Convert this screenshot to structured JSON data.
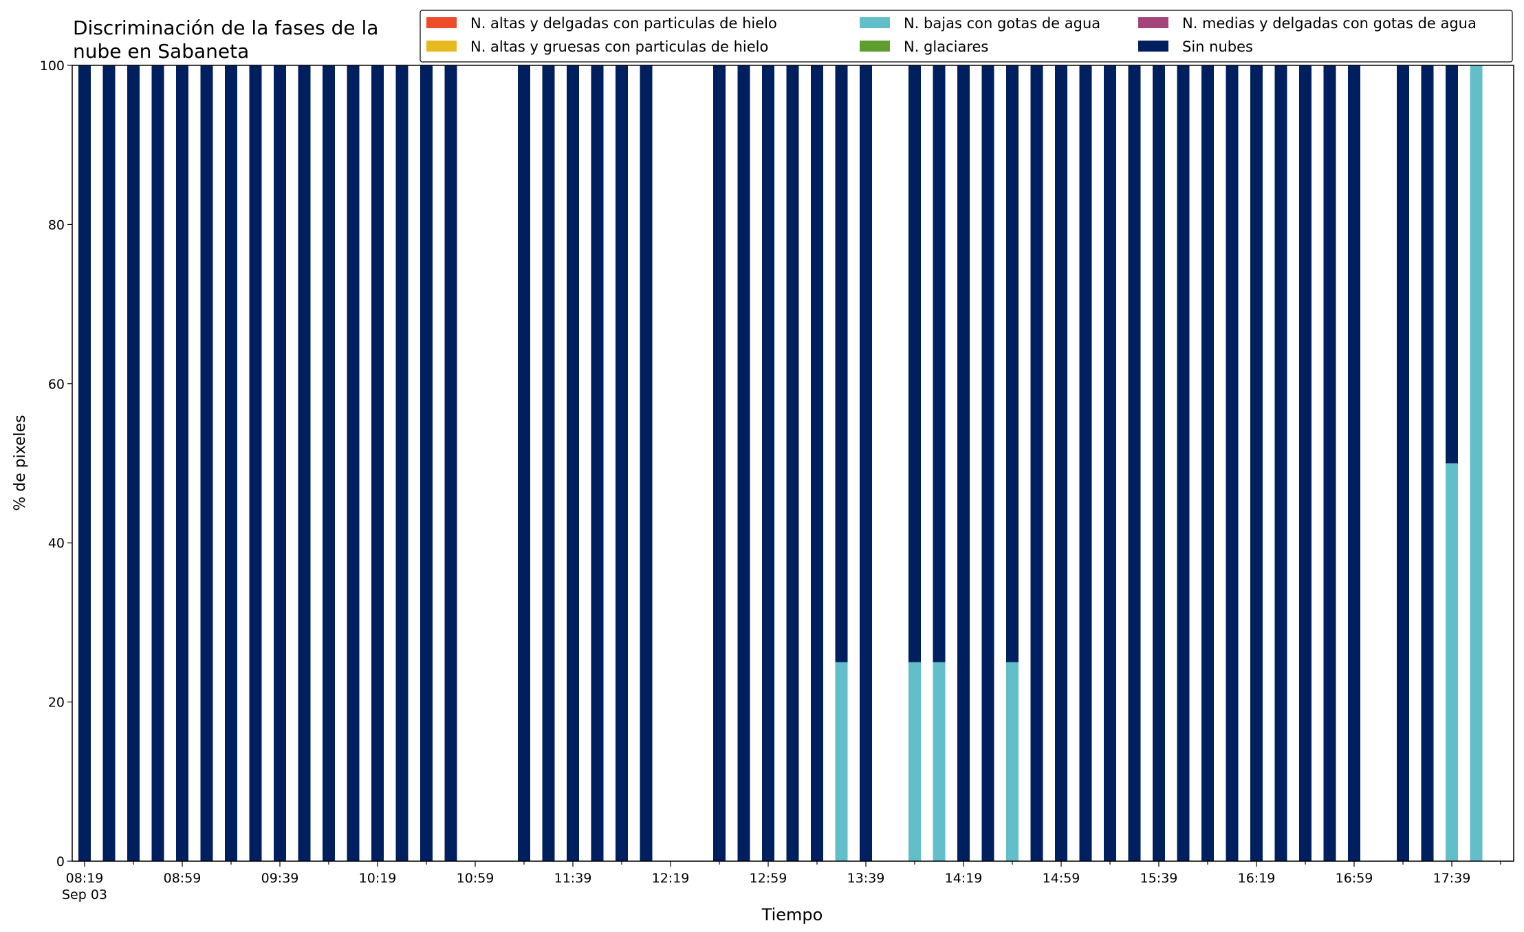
{
  "chart_data": {
    "type": "bar",
    "stacked": true,
    "title": "Discriminación de la fases de la\nnube en Sabaneta",
    "xlabel": "Tiempo",
    "ylabel": "% de pixeles",
    "ylim": [
      0,
      100
    ],
    "yticks": [
      0,
      20,
      40,
      60,
      80,
      100
    ],
    "x_start": "08:19",
    "x_step_minutes": 10,
    "x_count": 58,
    "x_major_ticks": [
      {
        "index": 0,
        "label": "08:19",
        "sublabel": "Sep 03"
      },
      {
        "index": 4,
        "label": "08:59"
      },
      {
        "index": 8,
        "label": "09:39"
      },
      {
        "index": 12,
        "label": "10:19"
      },
      {
        "index": 16,
        "label": "10:59"
      },
      {
        "index": 20,
        "label": "11:39"
      },
      {
        "index": 24,
        "label": "12:19"
      },
      {
        "index": 28,
        "label": "12:59"
      },
      {
        "index": 32,
        "label": "13:39"
      },
      {
        "index": 36,
        "label": "14:19"
      },
      {
        "index": 40,
        "label": "14:59"
      },
      {
        "index": 44,
        "label": "15:39"
      },
      {
        "index": 48,
        "label": "16:19"
      },
      {
        "index": 52,
        "label": "16:59"
      },
      {
        "index": 56,
        "label": "17:39"
      }
    ],
    "legend": {
      "placement": "top-right",
      "columns": 3
    },
    "series": [
      {
        "name": "N. altas y delgadas con particulas de hielo",
        "color": "#ee4b2b",
        "values": [
          0,
          0,
          0,
          0,
          0,
          0,
          0,
          0,
          0,
          0,
          0,
          0,
          0,
          0,
          0,
          0,
          0,
          0,
          0,
          0,
          0,
          0,
          0,
          0,
          0,
          0,
          0,
          0,
          0,
          0,
          0,
          0,
          0,
          0,
          0,
          0,
          0,
          0,
          0,
          0,
          0,
          0,
          0,
          0,
          0,
          0,
          0,
          0,
          0,
          0,
          0,
          0,
          0,
          0,
          0,
          0,
          0,
          0
        ]
      },
      {
        "name": "N. altas y gruesas con particulas de hielo",
        "color": "#e6b91e",
        "values": [
          0,
          0,
          0,
          0,
          0,
          0,
          0,
          0,
          0,
          0,
          0,
          0,
          0,
          0,
          0,
          0,
          0,
          0,
          0,
          0,
          0,
          0,
          0,
          0,
          0,
          0,
          0,
          0,
          0,
          0,
          0,
          0,
          0,
          0,
          0,
          0,
          0,
          0,
          0,
          0,
          0,
          0,
          0,
          0,
          0,
          0,
          0,
          0,
          0,
          0,
          0,
          0,
          0,
          0,
          0,
          0,
          0,
          0
        ]
      },
      {
        "name": "N. bajas con gotas de agua",
        "color": "#62bfc9",
        "values": [
          0,
          0,
          0,
          0,
          0,
          0,
          0,
          0,
          0,
          0,
          0,
          0,
          0,
          0,
          0,
          0,
          0,
          0,
          0,
          0,
          0,
          0,
          0,
          0,
          0,
          0,
          0,
          0,
          0,
          0,
          0,
          25,
          0,
          0,
          25,
          25,
          0,
          0,
          25,
          0,
          0,
          0,
          0,
          0,
          0,
          0,
          0,
          0,
          0,
          0,
          0,
          0,
          0,
          0,
          0,
          0,
          50,
          100
        ]
      },
      {
        "name": "N. glaciares",
        "color": "#5e9e2e",
        "values": [
          0,
          0,
          0,
          0,
          0,
          0,
          0,
          0,
          0,
          0,
          0,
          0,
          0,
          0,
          0,
          0,
          0,
          0,
          0,
          0,
          0,
          0,
          0,
          0,
          0,
          0,
          0,
          0,
          0,
          0,
          0,
          0,
          0,
          0,
          0,
          0,
          0,
          0,
          0,
          0,
          0,
          0,
          0,
          0,
          0,
          0,
          0,
          0,
          0,
          0,
          0,
          0,
          0,
          0,
          0,
          0,
          0,
          0
        ]
      },
      {
        "name": "N. medias y delgadas con gotas de agua",
        "color": "#a34578",
        "values": [
          0,
          0,
          0,
          0,
          0,
          0,
          0,
          0,
          0,
          0,
          0,
          0,
          0,
          0,
          0,
          0,
          0,
          0,
          0,
          0,
          0,
          0,
          0,
          0,
          0,
          0,
          0,
          0,
          0,
          0,
          0,
          0,
          0,
          0,
          0,
          0,
          0,
          0,
          0,
          0,
          0,
          0,
          0,
          0,
          0,
          0,
          0,
          0,
          0,
          0,
          0,
          0,
          0,
          0,
          0,
          0,
          0,
          0
        ]
      },
      {
        "name": "Sin nubes",
        "color": "#001f5f",
        "values": [
          100,
          100,
          100,
          100,
          100,
          100,
          100,
          100,
          100,
          100,
          100,
          100,
          100,
          100,
          100,
          100,
          0,
          0,
          100,
          100,
          100,
          100,
          100,
          100,
          0,
          0,
          100,
          100,
          100,
          100,
          100,
          75,
          100,
          0,
          75,
          75,
          100,
          100,
          75,
          100,
          100,
          100,
          100,
          100,
          100,
          100,
          100,
          100,
          100,
          100,
          100,
          100,
          100,
          0,
          100,
          100,
          50,
          0
        ]
      }
    ]
  }
}
